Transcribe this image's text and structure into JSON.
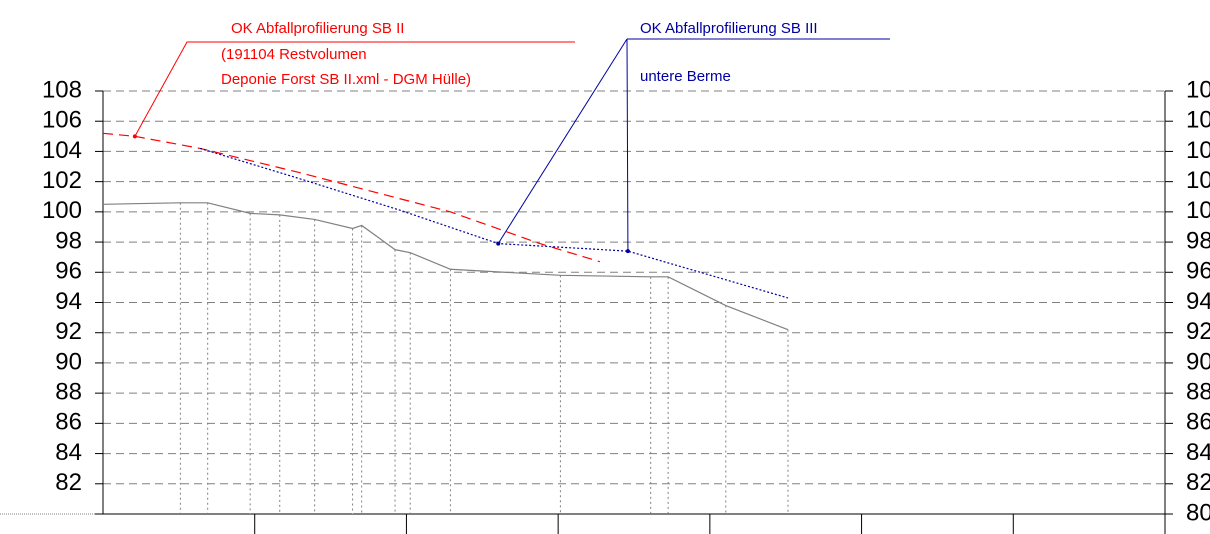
{
  "chart_data": {
    "type": "line",
    "xlim": [
      0,
      140
    ],
    "xticks": [
      20,
      40,
      60,
      80,
      100,
      120,
      140
    ],
    "ylim": [
      80,
      108
    ],
    "yticks": [
      80,
      82,
      84,
      86,
      88,
      90,
      92,
      94,
      96,
      98,
      100,
      102,
      104,
      106,
      108
    ],
    "grid": true,
    "series": [
      {
        "color": "#808080",
        "style": "solid",
        "x": [
          0,
          10.2,
          13.8,
          19.4,
          23.3,
          27.9,
          32.9,
          34.1,
          38.5,
          40.5,
          45.8,
          60.3,
          72.2,
          74.5,
          82.1,
          90.3
        ],
        "values": [
          100.5,
          100.6,
          100.6,
          99.9,
          99.8,
          99.5,
          98.9,
          99.1,
          97.5,
          97.3,
          96.2,
          95.8,
          95.7,
          95.7,
          93.8,
          92.2
        ]
      },
      {
        "color": "#ff0000",
        "style": "dashed",
        "x": [
          0,
          4.2,
          12.8,
          25.9,
          45.8,
          57.6,
          65.5
        ],
        "values": [
          105.2,
          105.0,
          104.2,
          102.6,
          100.0,
          97.9,
          96.7
        ]
      },
      {
        "color": "#0000a0",
        "style": "dotted",
        "x": [
          12.8,
          25.9,
          39.2,
          52.1,
          69.2,
          90.3
        ],
        "values": [
          104.2,
          102.2,
          100.1,
          97.9,
          97.4,
          94.3
        ]
      }
    ],
    "annotations": [
      {
        "color": "#ff0000",
        "lines": [
          "OK Abfallprofilierung SB II",
          "(191104 Restvolumen",
          "Deponie Forst SB II.xml - DGM Hülle)"
        ]
      },
      {
        "color": "#0000a0",
        "lines": [
          "OK Abfallprofilierung SB III",
          "untere Berme"
        ]
      }
    ]
  }
}
